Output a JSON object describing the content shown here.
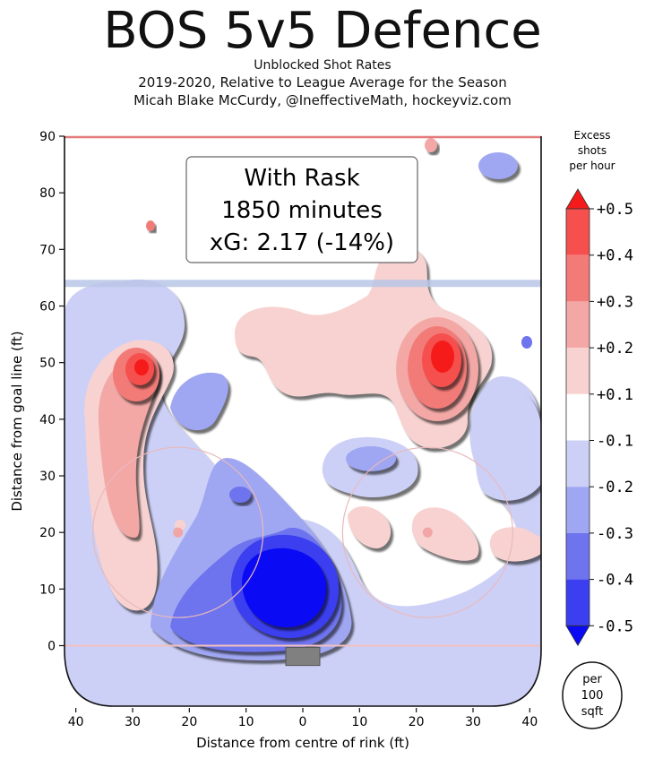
{
  "title": "BOS 5v5 Defence",
  "subtitle_lines": [
    "Unblocked Shot Rates",
    "2019-2020, Relative to League Average for the Season",
    "Micah Blake McCurdy, @IneffectiveMath, hockeyviz.com"
  ],
  "annotation": {
    "line1": "With Rask",
    "line2": "1850 minutes",
    "line3": "xG: 2.17 (-14%)"
  },
  "colorbar": {
    "title_lines": [
      "Excess",
      "shots",
      "per hour"
    ],
    "labels": [
      "+0.5",
      "+0.4",
      "+0.3",
      "+0.2",
      "+0.1",
      "-0.1",
      "-0.2",
      "-0.3",
      "-0.4",
      "-0.5"
    ],
    "colors": [
      "#f61b1b",
      "#f5504e",
      "#f27b78",
      "#f3a8a6",
      "#f8d2d0",
      "#ffffff",
      "#ccd0f6",
      "#9fa6f2",
      "#6e73ee",
      "#3c3ff0",
      "#0a0af5"
    ]
  },
  "unit_badge": [
    "per",
    "100",
    "sqft"
  ],
  "colors": {
    "pos_light": "#f8d2d0",
    "pos_mid": "#f3a8a6",
    "pos_strong": "#f27b78",
    "pos_deep": "#f5504e",
    "pos_max": "#f61b1b",
    "neg_light": "#ccd0f6",
    "neg_mid": "#9fa6f2",
    "neg_strong": "#6e73ee",
    "neg_deep": "#3c3ff0",
    "neg_max": "#0a0af5",
    "blue_line": "#b9c6e6",
    "goal_line": "#f2c0c0"
  },
  "chart_data": {
    "type": "heatmap",
    "title": "BOS 5v5 Defence",
    "xlabel": "Distance from centre of rink (ft)",
    "ylabel": "Distance from goal line (ft)",
    "xlim": [
      42,
      -42
    ],
    "ylim": [
      -11,
      90
    ],
    "xticks": [
      {
        "value": 40,
        "label": "40"
      },
      {
        "value": 30,
        "label": "30"
      },
      {
        "value": 20,
        "label": "20"
      },
      {
        "value": 10,
        "label": "10"
      },
      {
        "value": 0,
        "label": "0"
      },
      {
        "value": -10,
        "label": "10"
      },
      {
        "value": -20,
        "label": "20"
      },
      {
        "value": -30,
        "label": "30"
      },
      {
        "value": -40,
        "label": "40"
      }
    ],
    "yticks": [
      0,
      10,
      20,
      30,
      40,
      50,
      60,
      70,
      80,
      90
    ],
    "color_scale_range": [
      -0.5,
      0.5
    ],
    "blue_line_y": 64,
    "faceoff_dots": [
      {
        "x": 22,
        "y": 20
      },
      {
        "x": -22,
        "y": 20
      }
    ],
    "regions": [
      {
        "x": 1.5,
        "y": 9,
        "value": -0.5
      },
      {
        "x": 3,
        "y": 14,
        "value": -0.4
      },
      {
        "x": 5,
        "y": 20,
        "value": -0.3
      },
      {
        "x": 12,
        "y": 26,
        "value": -0.2
      },
      {
        "x": 19,
        "y": 42,
        "value": -0.3
      },
      {
        "x": -10,
        "y": 30,
        "value": -0.3
      },
      {
        "x": -38,
        "y": 84,
        "value": -0.2
      },
      {
        "x": 38,
        "y": 52,
        "value": -0.1
      },
      {
        "x": 28,
        "y": 48,
        "value": 0.5
      },
      {
        "x": 27,
        "y": 35,
        "value": 0.3
      },
      {
        "x": -24,
        "y": 49,
        "value": 0.5
      },
      {
        "x": -22,
        "y": 55,
        "value": 0.3
      },
      {
        "x": 4,
        "y": 54,
        "value": 0.1
      },
      {
        "x": -10,
        "y": 20,
        "value": 0.1
      },
      {
        "x": -24,
        "y": 18,
        "value": 0.1
      },
      {
        "x": -37,
        "y": 16,
        "value": 0.1
      }
    ]
  }
}
